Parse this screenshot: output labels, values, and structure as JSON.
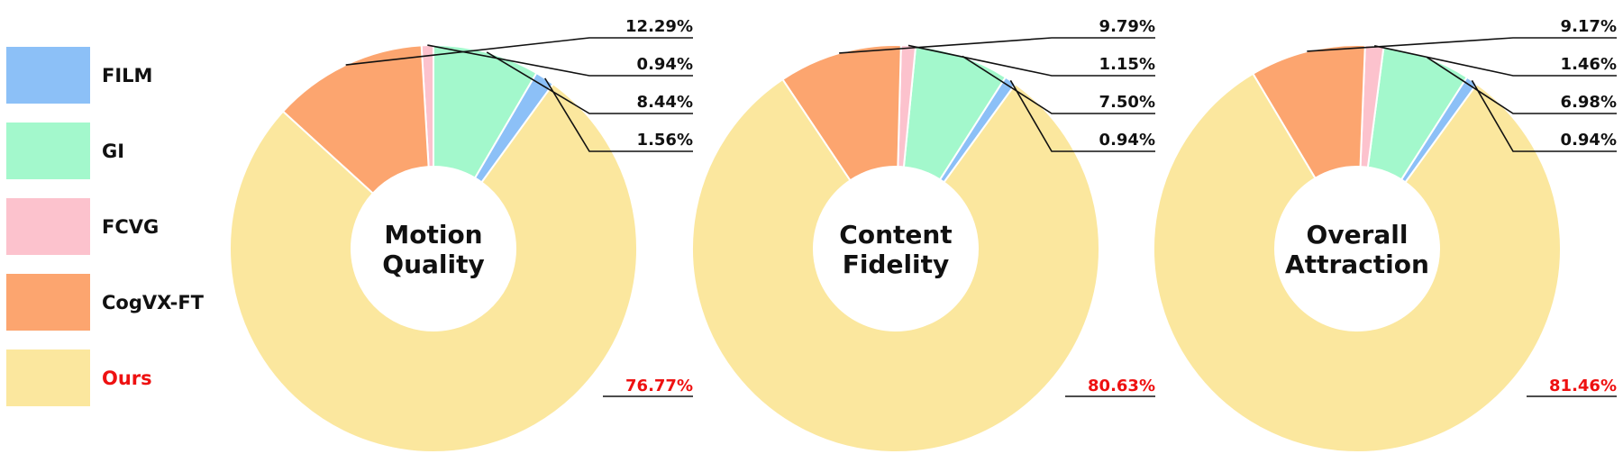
{
  "chart_data": {
    "type": "pie",
    "donut": true,
    "categories": [
      "FILM",
      "GI",
      "FCVG",
      "CogVX-FT",
      "Ours"
    ],
    "colors": {
      "FILM": "#8cc0f7",
      "GI": "#a3f8cc",
      "FCVG": "#fcc2cd",
      "CogVX-FT": "#fca56f",
      "Ours": "#fbe79e"
    },
    "highlight_color": "#ee1111",
    "highlight_category": "Ours",
    "legend_position": "left",
    "charts": [
      {
        "title": "Motion Quality",
        "title_lines": [
          "Motion",
          "Quality"
        ],
        "slices": [
          {
            "category": "FILM",
            "value": 1.56,
            "label": "1.56%"
          },
          {
            "category": "GI",
            "value": 8.44,
            "label": "8.44%"
          },
          {
            "category": "FCVG",
            "value": 0.94,
            "label": "0.94%"
          },
          {
            "category": "CogVX-FT",
            "value": 12.29,
            "label": "12.29%"
          },
          {
            "category": "Ours",
            "value": 76.77,
            "label": "76.77%"
          }
        ]
      },
      {
        "title": "Content Fidelity",
        "title_lines": [
          "Content",
          "Fidelity"
        ],
        "slices": [
          {
            "category": "FILM",
            "value": 0.94,
            "label": "0.94%"
          },
          {
            "category": "GI",
            "value": 7.5,
            "label": "7.50%"
          },
          {
            "category": "FCVG",
            "value": 1.15,
            "label": "1.15%"
          },
          {
            "category": "CogVX-FT",
            "value": 9.79,
            "label": "9.79%"
          },
          {
            "category": "Ours",
            "value": 80.63,
            "label": "80.63%"
          }
        ]
      },
      {
        "title": "Overall Attraction",
        "title_lines": [
          "Overall",
          "Attraction"
        ],
        "slices": [
          {
            "category": "FILM",
            "value": 0.94,
            "label": "0.94%"
          },
          {
            "category": "GI",
            "value": 6.98,
            "label": "6.98%"
          },
          {
            "category": "FCVG",
            "value": 1.46,
            "label": "1.46%"
          },
          {
            "category": "CogVX-FT",
            "value": 9.17,
            "label": "9.17%"
          },
          {
            "category": "Ours",
            "value": 81.46,
            "label": "81.46%"
          }
        ]
      }
    ]
  }
}
